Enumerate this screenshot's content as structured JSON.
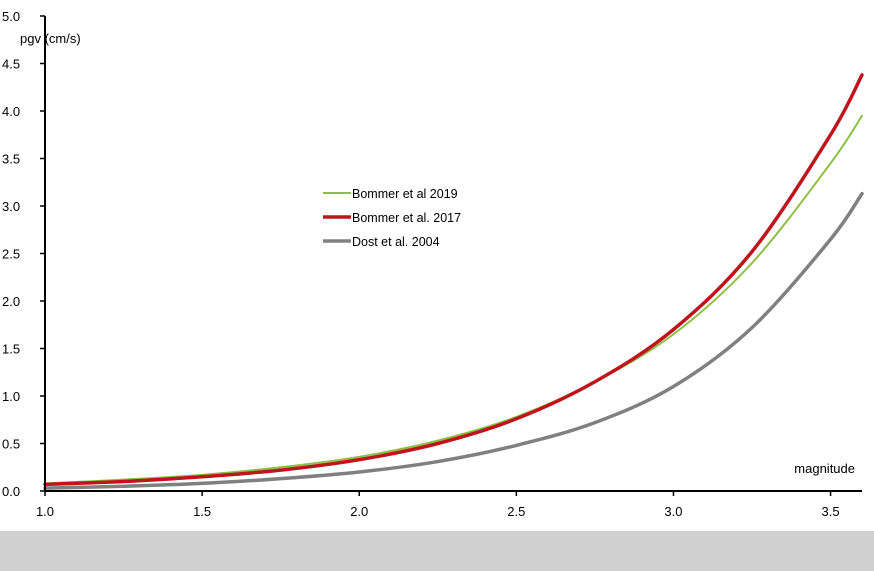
{
  "chart_data": {
    "type": "line",
    "xlabel": "magnitude",
    "ylabel": "pgv (cm/s)",
    "xlim": [
      1.0,
      3.6
    ],
    "ylim": [
      0.0,
      5.0
    ],
    "x_ticks": [
      "1.0",
      "1.5",
      "2.0",
      "2.5",
      "3.0",
      "3.5"
    ],
    "y_ticks": [
      "0.0",
      "0.5",
      "1.0",
      "1.5",
      "2.0",
      "2.5",
      "3.0",
      "3.5",
      "4.0",
      "4.5",
      "5.0"
    ],
    "grid": false,
    "legend_position": "center-left",
    "series": [
      {
        "name": "Bommer et al 2019",
        "color": "#8dbf45",
        "x": [
          1.0,
          1.25,
          1.5,
          1.75,
          2.0,
          2.25,
          2.5,
          2.75,
          3.0,
          3.25,
          3.5,
          3.6
        ],
        "y": [
          0.08,
          0.12,
          0.17,
          0.25,
          0.36,
          0.53,
          0.78,
          1.15,
          1.65,
          2.4,
          3.45,
          3.95
        ]
      },
      {
        "name": "Bommer et al. 2017",
        "color": "#c0141c",
        "x": [
          1.0,
          1.25,
          1.5,
          1.75,
          2.0,
          2.25,
          2.5,
          2.75,
          3.0,
          3.25,
          3.5,
          3.6
        ],
        "y": [
          0.07,
          0.1,
          0.15,
          0.22,
          0.33,
          0.5,
          0.76,
          1.15,
          1.7,
          2.52,
          3.75,
          4.38
        ]
      },
      {
        "name": "Dost et al. 2004",
        "color": "#808080",
        "x": [
          1.0,
          1.25,
          1.5,
          1.75,
          2.0,
          2.25,
          2.5,
          2.75,
          3.0,
          3.25,
          3.5,
          3.6
        ],
        "y": [
          0.03,
          0.05,
          0.08,
          0.13,
          0.2,
          0.31,
          0.48,
          0.72,
          1.1,
          1.72,
          2.65,
          3.13
        ]
      }
    ]
  }
}
